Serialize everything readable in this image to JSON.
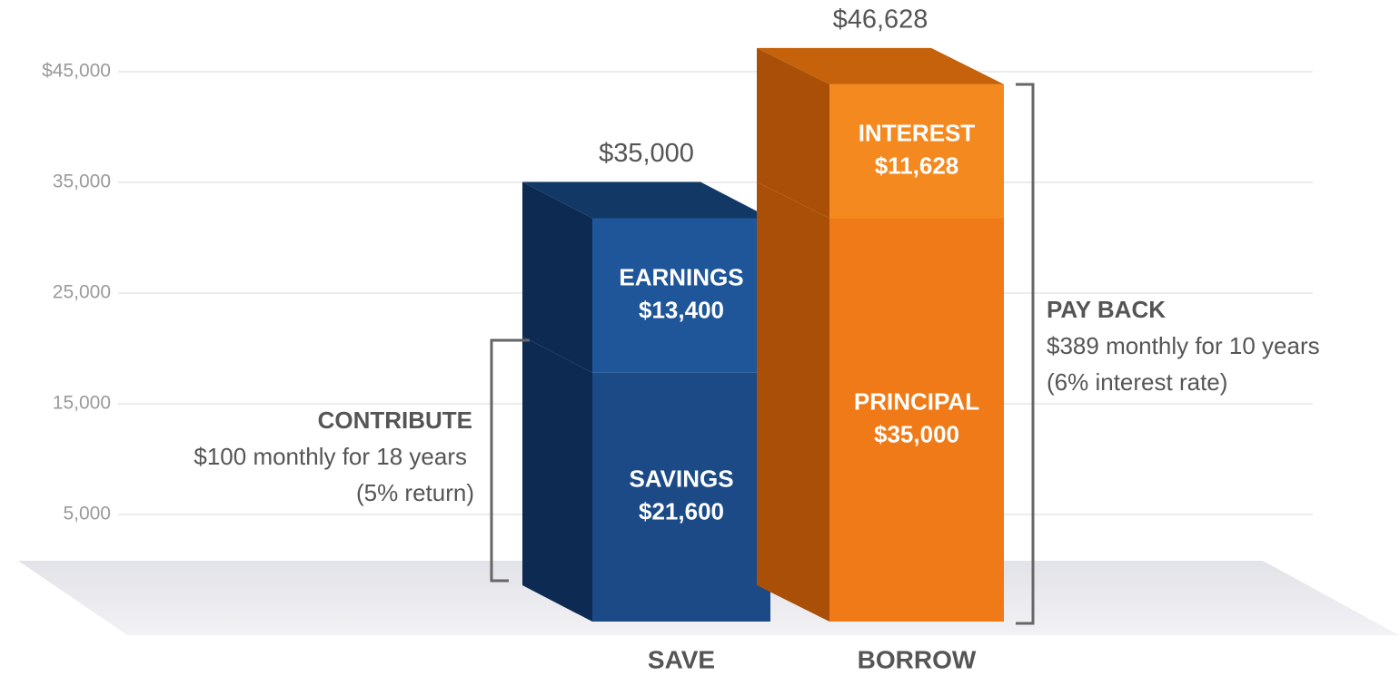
{
  "chart_data": {
    "type": "stacked-bar-3d",
    "ylim": [
      0,
      50000
    ],
    "yticks": [
      {
        "value": 5000,
        "label": "5,000"
      },
      {
        "value": 15000,
        "label": "15,000"
      },
      {
        "value": 25000,
        "label": "25,000"
      },
      {
        "value": 35000,
        "label": "35,000"
      },
      {
        "value": 45000,
        "label": "$45,000"
      }
    ],
    "grid": true,
    "bars": [
      {
        "category": "SAVE",
        "total": 35000,
        "total_label": "$35,000",
        "side_color": "#0d2b52",
        "top_color": "#123866",
        "segments": [
          {
            "name": "SAVINGS",
            "value": 21600,
            "value_label": "$21,600",
            "color": "#1b4a86"
          },
          {
            "name": "EARNINGS",
            "value": 13400,
            "value_label": "$13,400",
            "color": "#1f5699"
          }
        ]
      },
      {
        "category": "BORROW",
        "total": 46628,
        "total_label": "$46,628",
        "side_color": "#a94f07",
        "top_color": "#c5620b",
        "segments": [
          {
            "name": "PRINCIPAL",
            "value": 35000,
            "value_label": "$35,000",
            "color": "#ef7a17"
          },
          {
            "name": "INTEREST",
            "value": 11628,
            "value_label": "$11,628",
            "color": "#f4891f"
          }
        ]
      }
    ],
    "annotations": [
      {
        "title": "CONTRIBUTE",
        "lines": [
          "$100 monthly for 18 years",
          "(5% return)"
        ]
      },
      {
        "title": "PAY BACK",
        "lines": [
          "$389 monthly for 10 years",
          "(6% interest rate)"
        ]
      }
    ]
  }
}
